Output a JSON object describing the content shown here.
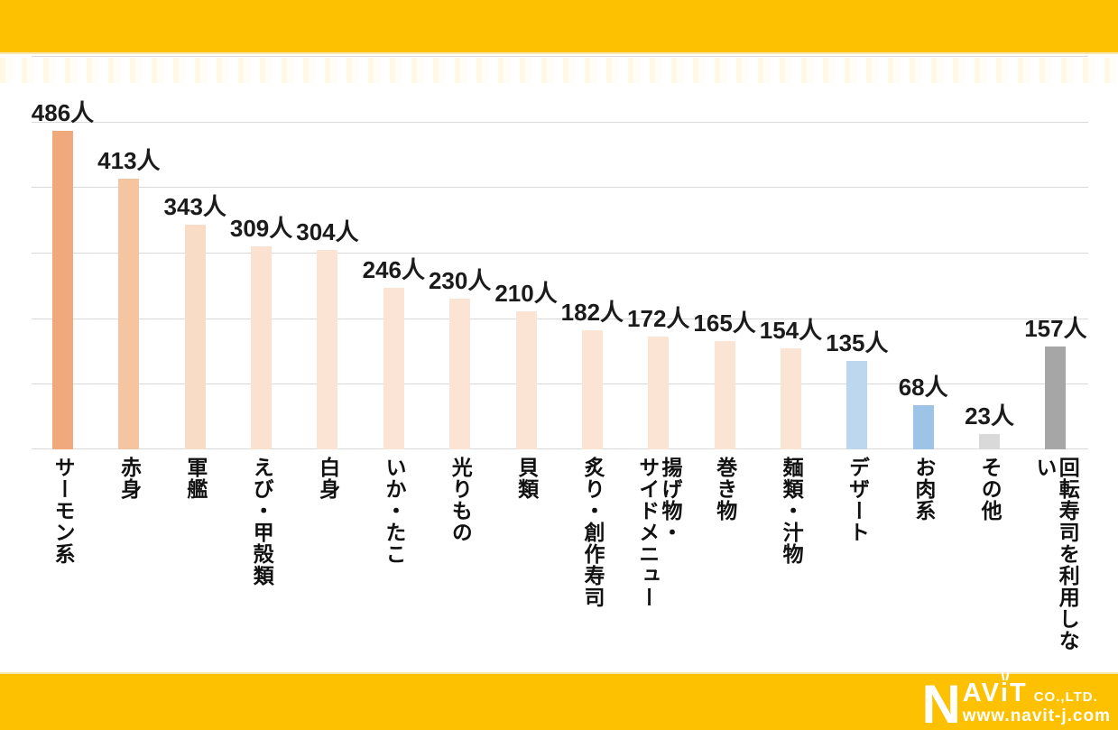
{
  "colors": {
    "banner": "#FDC101",
    "grid": "#D9D9D9",
    "text": "#1B1B1B",
    "background": "#FFFFFF"
  },
  "chart_data": {
    "type": "bar",
    "title": "",
    "categories": [
      "サーモン系",
      "赤身",
      "軍艦",
      "えび・甲殻類",
      "白身",
      "いか・たこ",
      "光りもの",
      "貝類",
      "炙り・創作寿司",
      "揚げ物・\nサイドメニュー",
      "巻き物",
      "麺類・汁物",
      "デザート",
      "お肉系",
      "その他",
      "回転寿司を利用しない"
    ],
    "values": [
      486,
      413,
      343,
      309,
      304,
      246,
      230,
      210,
      182,
      172,
      165,
      154,
      135,
      68,
      23,
      157
    ],
    "unit": "人",
    "value_labels": [
      "486人",
      "413人",
      "343人",
      "309人",
      "304人",
      "246人",
      "230人",
      "210人",
      "182人",
      "172人",
      "165人",
      "154人",
      "135人",
      "68人",
      "23人",
      "157人"
    ],
    "bar_colors": [
      "#F0A97D",
      "#F5C4A0",
      "#F9DCC6",
      "#FBE2D0",
      "#FBE4D3",
      "#FBE4D3",
      "#FBE4D3",
      "#FBE4D3",
      "#FCE4D4",
      "#FCE4D4",
      "#FCE4D4",
      "#FCE4D4",
      "#BDD7EE",
      "#9DC3E6",
      "#D9D9D9",
      "#A6A6A6"
    ],
    "ylim": [
      0,
      600
    ],
    "gridline_step": 100,
    "grid": true,
    "legend": false,
    "xlabel": "",
    "ylabel": ""
  },
  "footer": {
    "logo": {
      "n": "N",
      "av": "AV",
      "i": "i",
      "t": "T",
      "company": "CO.,LTD.",
      "url": "www.navit-j.com"
    }
  }
}
